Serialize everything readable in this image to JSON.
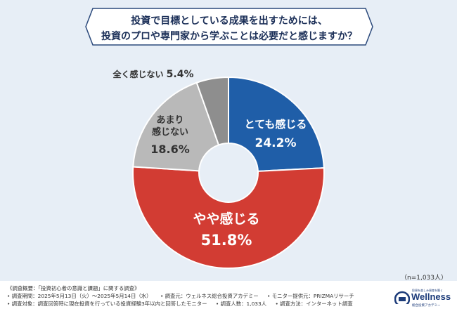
{
  "question": {
    "line1": "投資で目標としている成果を出すためには、",
    "line2": "投資のプロや専門家から学ぶことは必要だと感じますか？"
  },
  "chart_data": {
    "type": "pie",
    "donut": true,
    "slices": [
      {
        "label": "とても感じる",
        "value": 24.2,
        "display": "24.2%",
        "color": "#1f5ea8"
      },
      {
        "label": "やや感じる",
        "value": 51.8,
        "display": "51.8%",
        "color": "#d23c33"
      },
      {
        "label": "あまり\n感じない",
        "value": 18.6,
        "display": "18.6%",
        "color": "#b9b9b9"
      },
      {
        "label": "全く感じない",
        "value": 5.4,
        "display": "5.4%",
        "color": "#8e8e8e"
      }
    ]
  },
  "sample_note": "（n=1,033人）",
  "footer": {
    "line1": "《調査概要：「投資初心者の意識と課題」に関する調査》",
    "line2a": "• 調査期間：2025年5月13日（火）～2025年5月14日（水）",
    "line2b": "• 調査元：ウェルネス総合投資アカデミー",
    "line2c": "• モニター提供元：PRIZMAリサーチ",
    "line3a": "• 調査対象：調査回答時に現在投資を行っている投資経験3年以内と回答したモニター",
    "line3b": "• 調査人数：1,033人",
    "line3c": "• 調査方法：インターネット調査"
  },
  "logo": {
    "top": "投資を楽しみ資産を築く",
    "word": "Wellness",
    "sub": "総合投資アカデミー"
  }
}
